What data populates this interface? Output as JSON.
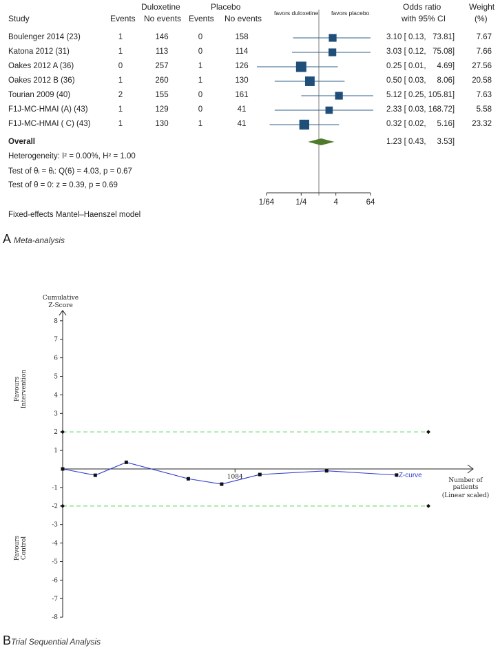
{
  "forest": {
    "headers": {
      "study": "Study",
      "group1": "Duloxetine",
      "group2": "Placebo",
      "events": "Events",
      "no_events": "No events",
      "favors_left": "favors duloxetine",
      "favors_right": "favors placebo",
      "or_line1": "Odds ratio",
      "or_line2": "with 95% CI",
      "weight_line1": "Weight",
      "weight_line2": "(%)"
    },
    "studies": [
      {
        "name": "Boulenger 2014 (23)",
        "e1": "1",
        "n1": "146",
        "e2": "0",
        "n2": "158",
        "ci": "3.10 [ 0.13,   73.81]",
        "weight": "7.67"
      },
      {
        "name": "Katona 2012 (31)",
        "e1": "1",
        "n1": "113",
        "e2": "0",
        "n2": "114",
        "ci": "3.03 [ 0.12,   75.08]",
        "weight": "7.66"
      },
      {
        "name": "Oakes 2012 A (36)",
        "e1": "0",
        "n1": "257",
        "e2": "1",
        "n2": "126",
        "ci": "0.25 [ 0.01,     4.69]",
        "weight": "27.56"
      },
      {
        "name": "Oakes 2012 B (36)",
        "e1": "1",
        "n1": "260",
        "e2": "1",
        "n2": "130",
        "ci": "0.50 [ 0.03,     8.06]",
        "weight": "20.58"
      },
      {
        "name": "Tourian 2009 (40)",
        "e1": "2",
        "n1": "155",
        "e2": "0",
        "n2": "161",
        "ci": "5.12 [ 0.25, 105.81]",
        "weight": "7.63"
      },
      {
        "name": "F1J-MC-HMAI (A) (43)",
        "e1": "1",
        "n1": "129",
        "e2": "0",
        "n2": "41",
        "ci": "2.33 [ 0.03, 168.72]",
        "weight": "5.58"
      },
      {
        "name": "F1J-MC-HMAI ( C) (43)",
        "e1": "1",
        "n1": "130",
        "e2": "1",
        "n2": "41",
        "ci": "0.32 [ 0.02,     5.16]",
        "weight": "23.32"
      }
    ],
    "overall": {
      "label": "Overall",
      "ci": "1.23 [ 0.43,     3.53]"
    },
    "stats": {
      "heterogeneity": "Heterogeneity: I² = 0.00%, H² = 1.00",
      "test_theta_i": "Test of θᵢ = θⱼ: Q(6) = 4.03, p = 0.67",
      "test_theta": "Test of θ = 0: z = 0.39, p = 0.69"
    },
    "model": "Fixed-effects Mantel–Haenszel model",
    "panel_letter": "A",
    "panel_caption": "Meta-analysis"
  },
  "chart_data": [
    {
      "type": "forest",
      "title": "Meta-analysis",
      "xscale": "log2",
      "xlim": [
        0.015625,
        64
      ],
      "xticks": [
        "1/64",
        "1/4",
        "4",
        "64"
      ],
      "xtick_values": [
        0.015625,
        0.25,
        4,
        64
      ],
      "null_line": 1,
      "studies": [
        {
          "name": "Boulenger 2014 (23)",
          "or": 3.1,
          "lo": 0.13,
          "hi": 73.81,
          "weight": 7.67
        },
        {
          "name": "Katona 2012 (31)",
          "or": 3.03,
          "lo": 0.12,
          "hi": 75.08,
          "weight": 7.66
        },
        {
          "name": "Oakes 2012 A (36)",
          "or": 0.25,
          "lo": 0.01,
          "hi": 4.69,
          "weight": 27.56
        },
        {
          "name": "Oakes 2012 B (36)",
          "or": 0.5,
          "lo": 0.03,
          "hi": 8.06,
          "weight": 20.58
        },
        {
          "name": "Tourian 2009 (40)",
          "or": 5.12,
          "lo": 0.25,
          "hi": 105.81,
          "weight": 7.63
        },
        {
          "name": "F1J-MC-HMAI (A) (43)",
          "or": 2.33,
          "lo": 0.03,
          "hi": 168.72,
          "weight": 5.58
        },
        {
          "name": "F1J-MC-HMAI ( C) (43)",
          "or": 0.32,
          "lo": 0.02,
          "hi": 5.16,
          "weight": 23.32
        }
      ],
      "overall": {
        "or": 1.23,
        "lo": 0.43,
        "hi": 3.53
      },
      "colors": {
        "marker": "#1f4e79",
        "diamond": "#4e7a2a",
        "line": "#2c5f8a",
        "null": "#bdbdbd"
      }
    },
    {
      "type": "line",
      "title": "Trial Sequential Analysis",
      "ylabel": "Cumulative Z-Score",
      "xlabel": "Number of patients (Linear scaled)",
      "ylim": [
        -8,
        8
      ],
      "yticks": [
        "-8",
        "-7",
        "-6",
        "-5",
        "-4",
        "-3",
        "-2",
        "-1",
        "1",
        "2",
        "3",
        "4",
        "5",
        "6",
        "7",
        "8"
      ],
      "ytick_values": [
        -8,
        -7,
        -6,
        -5,
        -4,
        -3,
        -2,
        -1,
        1,
        2,
        3,
        4,
        5,
        6,
        7,
        8
      ],
      "xlim": [
        0,
        2300
      ],
      "x_tick_label": "1084",
      "x_tick_value": 1084,
      "top_label": "Favours Intervention",
      "bottom_label": "Favours Control",
      "boundaries": [
        2,
        -2
      ],
      "z_curve": {
        "name": "Z-curve",
        "x": [
          0,
          205,
          400,
          790,
          1000,
          1240,
          1660,
          2100
        ],
        "y": [
          0.0,
          -0.34,
          0.36,
          -0.53,
          -0.82,
          -0.3,
          -0.1,
          -0.33
        ]
      },
      "colors": {
        "curve": "#2f3bd1",
        "boundary": "#7ee07e",
        "axis": "#222222"
      }
    }
  ],
  "tsa": {
    "panel_letter": "B",
    "panel_caption": "Trial Sequential Analysis",
    "y_title_line1": "Cumulative",
    "y_title_line2": "Z-Score",
    "x_title_line1": "Number of",
    "x_title_line2": "patients",
    "x_title_line3": "(Linear scaled)",
    "top_label_line1": "Favours",
    "top_label_line2": "Intervention",
    "bottom_label_line1": "Favours",
    "bottom_label_line2": "Control",
    "curve_label": "Z-curve"
  }
}
